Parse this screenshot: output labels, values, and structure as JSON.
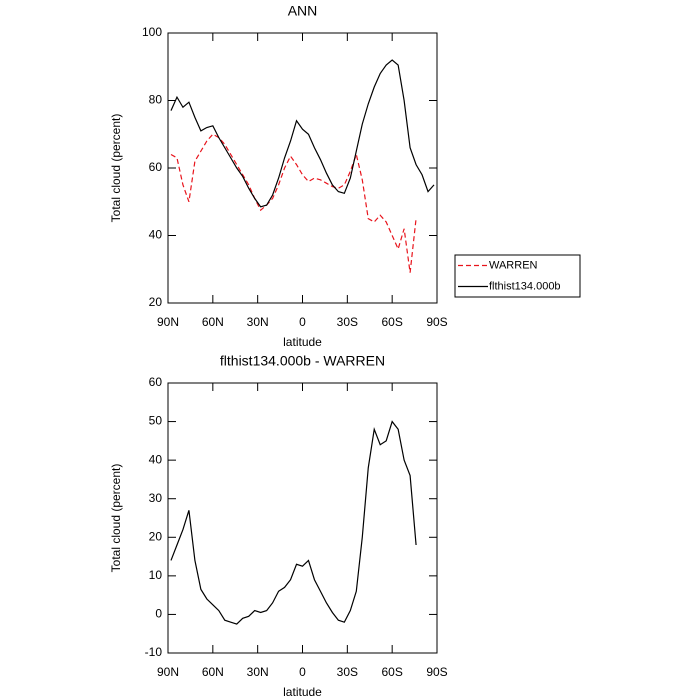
{
  "chart_data": [
    {
      "type": "line",
      "title": "ANN",
      "xlabel": "latitude",
      "ylabel": "Total cloud (percent)",
      "x": [
        88,
        84,
        80,
        76,
        72,
        68,
        64,
        60,
        56,
        52,
        48,
        44,
        40,
        36,
        32,
        28,
        24,
        20,
        16,
        12,
        8,
        4,
        0,
        -4,
        -8,
        -12,
        -16,
        -20,
        -24,
        -28,
        -32,
        -36,
        -40,
        -44,
        -48,
        -52,
        -56,
        -60,
        -64,
        -68,
        -72,
        -76,
        -80,
        -84,
        -88
      ],
      "series": [
        {
          "name": "WARREN",
          "color": "#e8141c",
          "dashed": true,
          "values": [
            64,
            63,
            55,
            50,
            62,
            65,
            68,
            70,
            69,
            67,
            64,
            61,
            58,
            55,
            51,
            47.5,
            49,
            51,
            55,
            60,
            63.5,
            61,
            58,
            56,
            57,
            56.5,
            55.5,
            54.5,
            54,
            55,
            59,
            64,
            56.5,
            45,
            44,
            46,
            44,
            40,
            36,
            42,
            29,
            45,
            null,
            null,
            null
          ]
        },
        {
          "name": "flthist134.000b",
          "color": "#000000",
          "dashed": false,
          "values": [
            77,
            81,
            78,
            79.5,
            75,
            71,
            72,
            72.5,
            69,
            66,
            63,
            60,
            57.5,
            54,
            51,
            48.5,
            49,
            52,
            57,
            63,
            68,
            74,
            71.5,
            70,
            66,
            62.5,
            58.5,
            55,
            53,
            52.5,
            57,
            65,
            73,
            79,
            84,
            88,
            90.5,
            92,
            90.5,
            80,
            66,
            61,
            58,
            53,
            55
          ]
        }
      ],
      "xlim": [
        90,
        -90
      ],
      "xticks": [
        {
          "value": 90,
          "label": "90N"
        },
        {
          "value": 60,
          "label": "60N"
        },
        {
          "value": 30,
          "label": "30N"
        },
        0,
        {
          "value": -30,
          "label": "30S"
        },
        {
          "value": -60,
          "label": "60S"
        },
        {
          "value": -90,
          "label": "90S"
        }
      ],
      "ylim": [
        20,
        100
      ],
      "yticks": [
        20,
        40,
        60,
        80,
        100
      ],
      "legend": "right"
    },
    {
      "type": "line",
      "title": "flthist134.000b - WARREN",
      "xlabel": "latitude",
      "ylabel": "Total cloud (percent)",
      "x": [
        88,
        84,
        80,
        76,
        72,
        68,
        64,
        60,
        56,
        52,
        48,
        44,
        40,
        36,
        32,
        28,
        24,
        20,
        16,
        12,
        8,
        4,
        0,
        -4,
        -8,
        -12,
        -16,
        -20,
        -24,
        -28,
        -32,
        -36,
        -40,
        -44,
        -48,
        -52,
        -56,
        -60,
        -64,
        -68,
        -72,
        -76,
        -80,
        -84,
        -88
      ],
      "series": [
        {
          "color": "#000000",
          "dashed": false,
          "values": [
            14,
            18,
            22,
            27,
            14,
            6.5,
            4,
            2.5,
            1,
            -1.5,
            -2,
            -2.5,
            -1,
            -0.5,
            1,
            0.5,
            1,
            3,
            6,
            7,
            9,
            13,
            12.5,
            14,
            9,
            6,
            3,
            0.5,
            -1.5,
            -2,
            1,
            6,
            20,
            38,
            48,
            44,
            45,
            50,
            48,
            40,
            36,
            18,
            null,
            null,
            null
          ]
        }
      ],
      "xlim": [
        90,
        -90
      ],
      "xticks": [
        {
          "value": 90,
          "label": "90N"
        },
        {
          "value": 60,
          "label": "60N"
        },
        {
          "value": 30,
          "label": "30N"
        },
        0,
        {
          "value": -30,
          "label": "30S"
        },
        {
          "value": -60,
          "label": "60S"
        },
        {
          "value": -90,
          "label": "90S"
        }
      ],
      "ylim": [
        -10,
        60
      ],
      "yticks": [
        -10,
        0,
        10,
        20,
        30,
        40,
        50,
        60
      ]
    }
  ]
}
